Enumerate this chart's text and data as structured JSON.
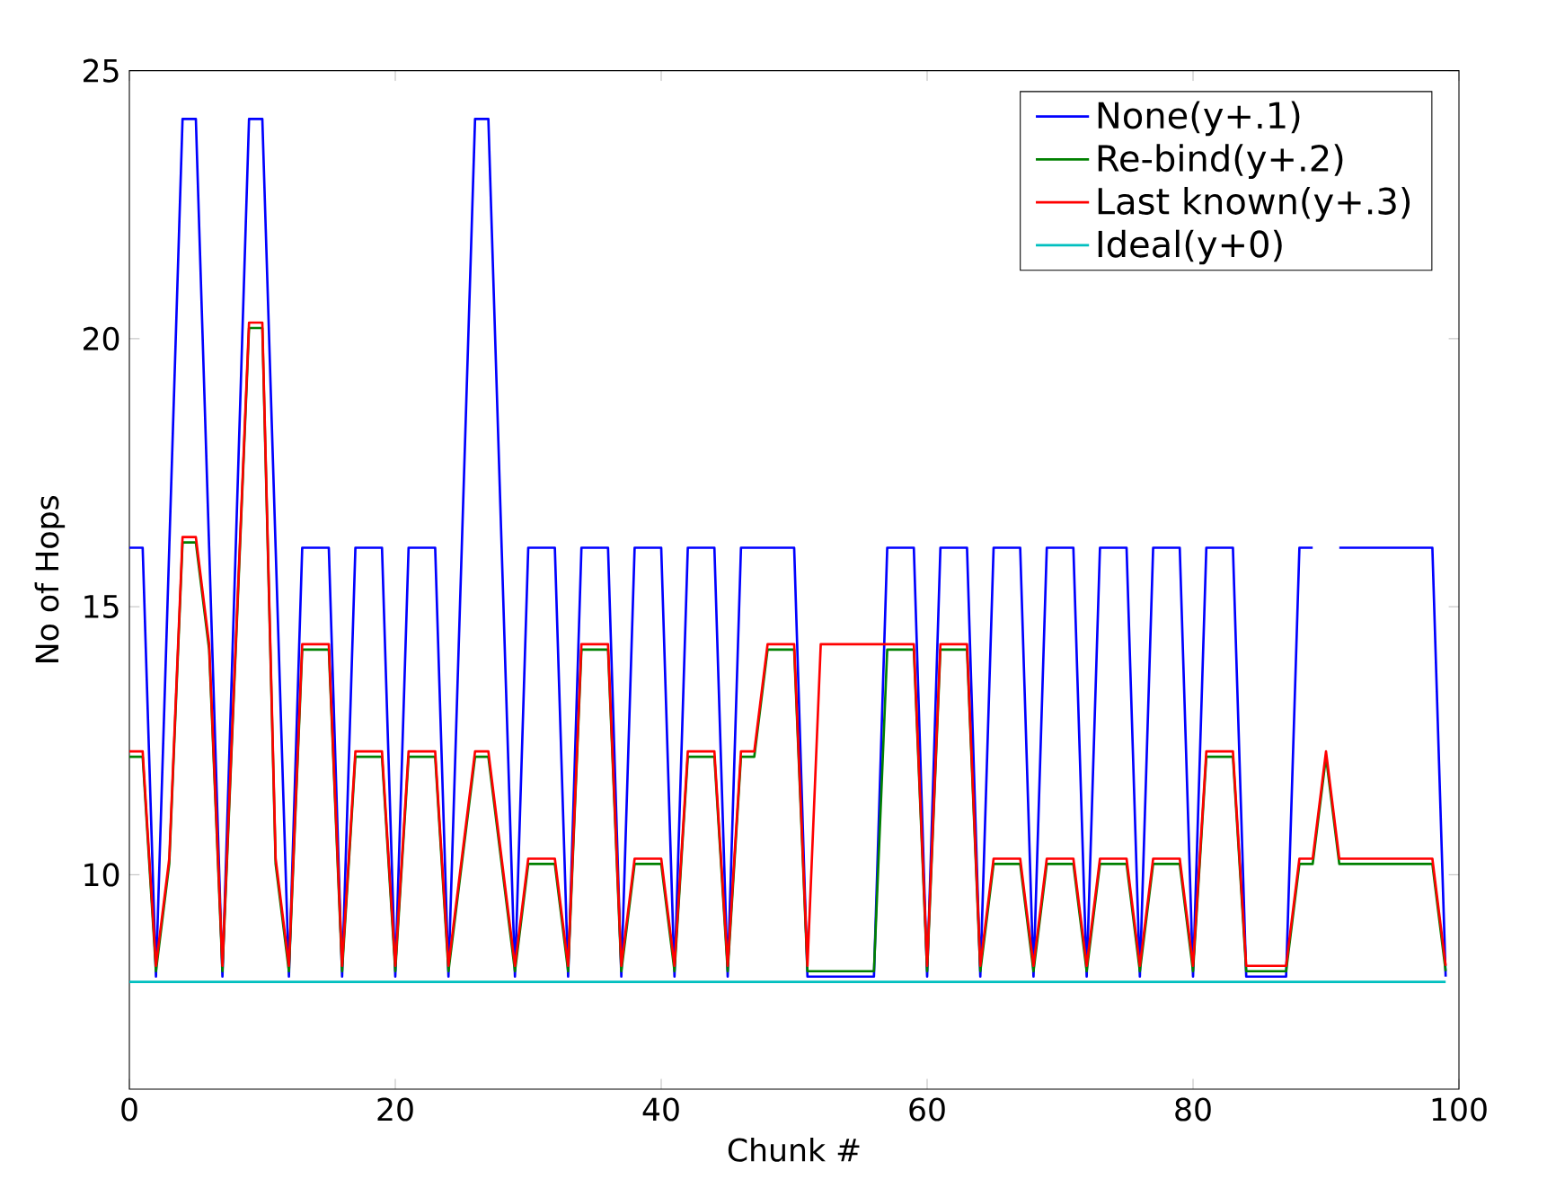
{
  "chart_data": {
    "type": "line",
    "xlabel": "Chunk #",
    "ylabel": "No of Hops",
    "x": [
      0,
      1,
      2,
      3,
      4,
      5,
      6,
      7,
      8,
      9,
      10,
      11,
      12,
      13,
      14,
      15,
      16,
      17,
      18,
      19,
      20,
      21,
      22,
      23,
      24,
      25,
      26,
      27,
      28,
      29,
      30,
      31,
      32,
      33,
      34,
      35,
      36,
      37,
      38,
      39,
      40,
      41,
      42,
      43,
      44,
      45,
      46,
      47,
      48,
      49,
      50,
      51,
      52,
      53,
      54,
      55,
      56,
      57,
      58,
      59,
      60,
      61,
      62,
      63,
      64,
      65,
      66,
      67,
      68,
      69,
      70,
      71,
      72,
      73,
      74,
      75,
      76,
      77,
      78,
      79,
      80,
      81,
      82,
      83,
      84,
      85,
      86,
      87,
      88,
      89,
      90,
      91,
      92,
      93,
      94,
      95,
      96,
      97,
      98,
      99
    ],
    "series": [
      {
        "name": "None(y+.1)",
        "color": "#0000ff",
        "values": [
          16.1,
          16.1,
          8.1,
          16.1,
          24.1,
          24.1,
          16.1,
          8.1,
          16.1,
          24.1,
          24.1,
          16.1,
          8.1,
          16.1,
          16.1,
          16.1,
          8.1,
          16.1,
          16.1,
          16.1,
          8.1,
          16.1,
          16.1,
          16.1,
          8.1,
          16.1,
          24.1,
          24.1,
          16.1,
          8.1,
          16.1,
          16.1,
          16.1,
          8.1,
          16.1,
          16.1,
          16.1,
          8.1,
          16.1,
          16.1,
          16.1,
          8.1,
          16.1,
          16.1,
          16.1,
          8.1,
          16.1,
          16.1,
          16.1,
          16.1,
          16.1,
          8.1,
          8.1,
          8.1,
          8.1,
          8.1,
          8.1,
          16.1,
          16.1,
          16.1,
          8.1,
          16.1,
          16.1,
          16.1,
          8.1,
          16.1,
          16.1,
          16.1,
          8.1,
          16.1,
          16.1,
          16.1,
          8.1,
          16.1,
          16.1,
          16.1,
          8.1,
          16.1,
          16.1,
          16.1,
          8.1,
          16.1,
          16.1,
          16.1,
          8.1,
          8.1,
          8.1,
          8.1,
          16.1,
          16.1,
          null,
          16.1,
          16.1,
          16.1,
          16.1,
          16.1,
          16.1,
          16.1,
          16.1,
          8.1
        ]
      },
      {
        "name": "Re-bind(y+.2)",
        "color": "#008000",
        "values": [
          12.2,
          12.2,
          8.2,
          10.2,
          16.2,
          16.2,
          14.2,
          8.2,
          14.2,
          20.2,
          20.2,
          10.2,
          8.2,
          14.2,
          14.2,
          14.2,
          8.2,
          12.2,
          12.2,
          12.2,
          8.2,
          12.2,
          12.2,
          12.2,
          8.2,
          10.2,
          12.2,
          12.2,
          10.2,
          8.2,
          10.2,
          10.2,
          10.2,
          8.2,
          14.2,
          14.2,
          14.2,
          8.2,
          10.2,
          10.2,
          10.2,
          8.2,
          12.2,
          12.2,
          12.2,
          8.2,
          12.2,
          12.2,
          14.2,
          14.2,
          14.2,
          8.2,
          8.2,
          8.2,
          8.2,
          8.2,
          8.2,
          14.2,
          14.2,
          14.2,
          8.2,
          14.2,
          14.2,
          14.2,
          8.2,
          10.2,
          10.2,
          10.2,
          8.2,
          10.2,
          10.2,
          10.2,
          8.2,
          10.2,
          10.2,
          10.2,
          8.2,
          10.2,
          10.2,
          10.2,
          8.2,
          12.2,
          12.2,
          12.2,
          8.2,
          8.2,
          8.2,
          8.2,
          10.2,
          10.2,
          12.2,
          10.2,
          10.2,
          10.2,
          10.2,
          10.2,
          10.2,
          10.2,
          10.2,
          8.2
        ]
      },
      {
        "name": "Last known(y+.3)",
        "color": "#ff0000",
        "values": [
          12.3,
          12.3,
          8.3,
          10.3,
          16.3,
          16.3,
          14.3,
          8.3,
          14.3,
          20.3,
          20.3,
          10.3,
          8.3,
          14.3,
          14.3,
          14.3,
          8.3,
          12.3,
          12.3,
          12.3,
          8.3,
          12.3,
          12.3,
          12.3,
          8.3,
          10.3,
          12.3,
          12.3,
          10.3,
          8.3,
          10.3,
          10.3,
          10.3,
          8.3,
          14.3,
          14.3,
          14.3,
          8.3,
          10.3,
          10.3,
          10.3,
          8.3,
          12.3,
          12.3,
          12.3,
          8.3,
          12.3,
          12.3,
          14.3,
          14.3,
          14.3,
          8.3,
          14.3,
          14.3,
          14.3,
          14.3,
          14.3,
          14.3,
          14.3,
          14.3,
          8.3,
          14.3,
          14.3,
          14.3,
          8.3,
          10.3,
          10.3,
          10.3,
          8.3,
          10.3,
          10.3,
          10.3,
          8.3,
          10.3,
          10.3,
          10.3,
          8.3,
          10.3,
          10.3,
          10.3,
          8.3,
          12.3,
          12.3,
          12.3,
          8.3,
          8.3,
          8.3,
          8.3,
          10.3,
          10.3,
          12.3,
          10.3,
          10.3,
          10.3,
          10.3,
          10.3,
          10.3,
          10.3,
          10.3,
          8.3
        ]
      },
      {
        "name": "Ideal(y+0)",
        "color": "#00bfbf",
        "values": [
          8,
          8,
          8,
          8,
          8,
          8,
          8,
          8,
          8,
          8,
          8,
          8,
          8,
          8,
          8,
          8,
          8,
          8,
          8,
          8,
          8,
          8,
          8,
          8,
          8,
          8,
          8,
          8,
          8,
          8,
          8,
          8,
          8,
          8,
          8,
          8,
          8,
          8,
          8,
          8,
          8,
          8,
          8,
          8,
          8,
          8,
          8,
          8,
          8,
          8,
          8,
          8,
          8,
          8,
          8,
          8,
          8,
          8,
          8,
          8,
          8,
          8,
          8,
          8,
          8,
          8,
          8,
          8,
          8,
          8,
          8,
          8,
          8,
          8,
          8,
          8,
          8,
          8,
          8,
          8,
          8,
          8,
          8,
          8,
          8,
          8,
          8,
          8,
          8,
          8,
          8,
          8,
          8,
          8,
          8,
          8,
          8,
          8,
          8,
          8
        ]
      }
    ],
    "xlim": [
      0,
      100
    ],
    "xticks": [
      0,
      20,
      40,
      60,
      80,
      100
    ],
    "ylim": [
      6,
      25
    ],
    "yticks": [
      10,
      15,
      20,
      25
    ],
    "grid": false,
    "legend": "top right",
    "marker": "none",
    "line_style": "solid"
  }
}
